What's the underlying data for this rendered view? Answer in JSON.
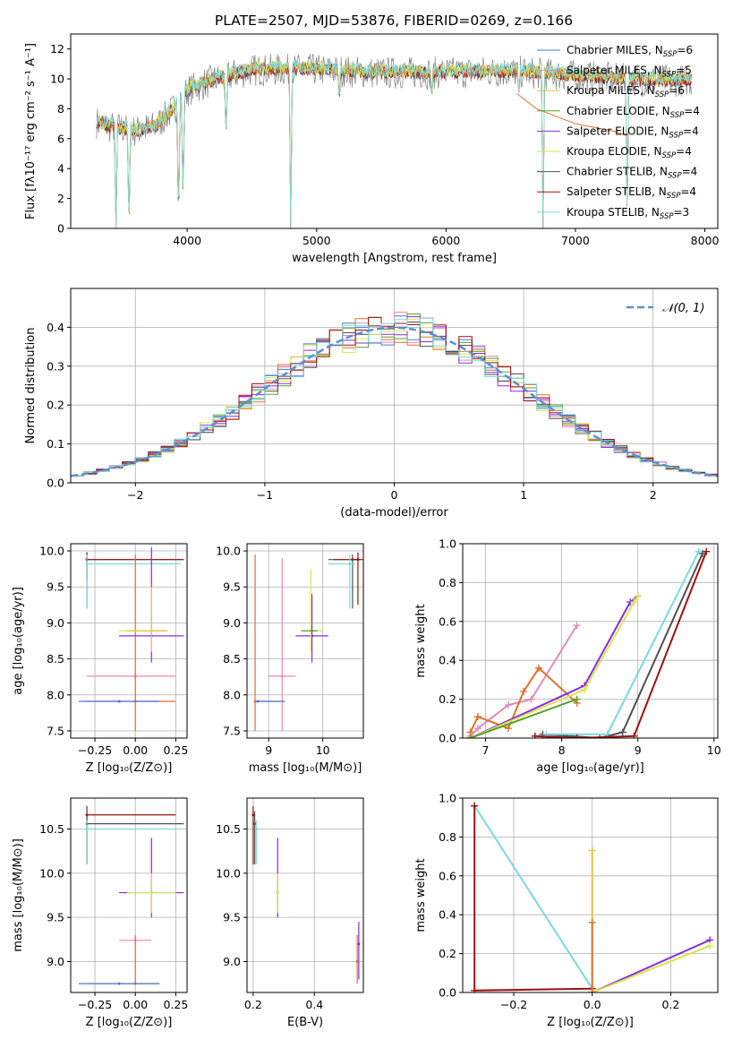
{
  "title": "PLATE=2507, MJD=53876, FIBERID=0269, z=0.166",
  "colors": {
    "Chabrier MILES": "#4a78d6",
    "Salpeter MILES": "#e38ab8",
    "Kroupa MILES": "#e8c040",
    "Chabrier ELODIE": "#5aa02c",
    "Salpeter ELODIE": "#8a2be2",
    "Kroupa ELODIE": "#d4e84a",
    "Chabrier STELIB": "#505050",
    "Salpeter STELIB": "#a01010",
    "Kroupa STELIB": "#7dd8e0",
    "data": "#808080",
    "orange": "#e07030",
    "normal": "#5b8fd6"
  },
  "chart_data": [
    {
      "type": "line",
      "title": "PLATE=2507, MJD=53876, FIBERID=0269, z=0.166",
      "xlabel": "wavelength [Angstrom, rest frame]",
      "ylabel": "Flux [fλ10⁻¹⁷ erg cm⁻² s⁻¹ A⁻¹]",
      "xlim": [
        3100,
        8100
      ],
      "ylim": [
        0,
        13
      ],
      "xticks": [
        "4000",
        "5000",
        "6000",
        "7000",
        "8000"
      ],
      "yticks": [
        "0",
        "2",
        "4",
        "6",
        "8",
        "10",
        "12"
      ],
      "grid": false,
      "legend_position": "top-right",
      "legend": [
        {
          "name": "Chabrier MILES",
          "sub": "SSP",
          "n": "6"
        },
        {
          "name": "Salpeter MILES",
          "sub": "SSP",
          "n": "5"
        },
        {
          "name": "Kroupa MILES",
          "sub": "SSP",
          "n": "6"
        },
        {
          "name": "Chabrier ELODIE",
          "sub": "SSP",
          "n": "4"
        },
        {
          "name": "Salpeter ELODIE",
          "sub": "SSP",
          "n": "4"
        },
        {
          "name": "Kroupa ELODIE",
          "sub": "SSP",
          "n": "4"
        },
        {
          "name": "Chabrier STELIB",
          "sub": "SSP",
          "n": "4"
        },
        {
          "name": "Salpeter STELIB",
          "sub": "SSP",
          "n": "4"
        },
        {
          "name": "Kroupa STELIB",
          "sub": "SSP",
          "n": "3"
        }
      ],
      "continuum": [
        [
          3300,
          7.1
        ],
        [
          3400,
          6.8
        ],
        [
          3600,
          6.5
        ],
        [
          3750,
          6.8
        ],
        [
          3900,
          8.0
        ],
        [
          4000,
          9.2
        ],
        [
          4200,
          9.9
        ],
        [
          4500,
          10.6
        ],
        [
          5000,
          10.6
        ],
        [
          5500,
          10.4
        ],
        [
          6000,
          10.4
        ],
        [
          6500,
          10.5
        ],
        [
          7000,
          10.2
        ],
        [
          7500,
          9.9
        ],
        [
          7900,
          9.9
        ]
      ],
      "dips": [
        [
          3450,
          0
        ],
        [
          3550,
          0
        ],
        [
          3933,
          0
        ],
        [
          3968,
          1.5
        ],
        [
          4300,
          6.0
        ],
        [
          4800,
          0
        ],
        [
          5175,
          8.5
        ],
        [
          5890,
          8.7
        ],
        [
          6563,
          9.0
        ],
        [
          6750,
          0
        ],
        [
          7400,
          0
        ]
      ],
      "tail": [
        [
          6550,
          9.0
        ],
        [
          6700,
          8.0
        ],
        [
          7000,
          7.0
        ],
        [
          7300,
          6.5
        ],
        [
          7400,
          6.2
        ]
      ]
    },
    {
      "type": "line",
      "xlabel": "(data-model)/error",
      "ylabel": "Normed distribution",
      "xlim": [
        -2.5,
        2.5
      ],
      "ylim": [
        0,
        0.5
      ],
      "xticks": [
        "−2",
        "−1",
        "0",
        "1",
        "2"
      ],
      "yticks": [
        "0.0",
        "0.1",
        "0.2",
        "0.3",
        "0.4"
      ],
      "grid": true,
      "legend_position": "top-right",
      "legend_label": "𝒩(0, 1)",
      "bin_width": 0.1,
      "note": "histograms of 9 fits overlaid on a standard normal curve"
    },
    {
      "type": "scatter",
      "xlabel": "Z [log₁₀(Z/Z⊙)]",
      "ylabel": "age  [log₁₀(age/yr)]",
      "xlim": [
        -0.4,
        0.32
      ],
      "ylim": [
        7.4,
        10.1
      ],
      "xticks": [
        "−0.25",
        "0.00",
        "0.25"
      ],
      "yticks": [
        "7.5",
        "8.0",
        "8.5",
        "9.0",
        "9.5",
        "10.0"
      ],
      "grid": true,
      "points": [
        {
          "c": "Chabrier STELIB",
          "x": -0.3,
          "y": 9.88,
          "xe": [
            -0.3,
            0.3
          ],
          "ye": [
            9.2,
            9.98
          ]
        },
        {
          "c": "Salpeter STELIB",
          "x": -0.3,
          "y": 9.88,
          "xe": [
            -0.3,
            0.3
          ],
          "ye": [
            9.6,
            9.98
          ]
        },
        {
          "c": "Kroupa STELIB",
          "x": -0.3,
          "y": 9.82,
          "xe": [
            -0.3,
            0.28
          ],
          "ye": [
            9.2,
            9.95
          ]
        },
        {
          "c": "Salpeter MILES",
          "x": 0.0,
          "y": 8.26,
          "xe": [
            -0.3,
            0.25
          ],
          "ye": [
            8.26,
            8.26
          ]
        },
        {
          "c": "orange",
          "x": 0.0,
          "y": 7.91,
          "xe": [
            -0.3,
            0.25
          ],
          "ye": [
            7.5,
            9.95
          ]
        },
        {
          "c": "Chabrier MILES",
          "x": -0.1,
          "y": 7.91,
          "xe": [
            -0.35,
            0.15
          ],
          "ye": [
            7.91,
            7.91
          ]
        },
        {
          "c": "Salpeter ELODIE",
          "x": 0.1,
          "y": 8.82,
          "xe": [
            -0.1,
            0.3
          ],
          "ye": [
            8.45,
            10.05
          ]
        },
        {
          "c": "Kroupa ELODIE",
          "x": 0.1,
          "y": 8.89,
          "xe": [
            -0.1,
            0.2
          ],
          "ye": [
            8.6,
            9.5
          ]
        },
        {
          "c": "Kroupa MILES",
          "x": 0.0,
          "y": 8.89,
          "xe": [
            -0.05,
            0.2
          ],
          "ye": [
            8.89,
            8.89
          ]
        }
      ]
    },
    {
      "type": "scatter",
      "xlabel": "mass [log₁₀(M/M⊙)]",
      "ylabel": "",
      "xlim": [
        8.6,
        10.75
      ],
      "ylim": [
        7.4,
        10.1
      ],
      "xticks": [
        "9",
        "10"
      ],
      "yticks": [
        "7.5",
        "8.0",
        "8.5",
        "9.0",
        "9.5",
        "10.0"
      ],
      "grid": true,
      "points": [
        {
          "c": "orange",
          "x": 8.75,
          "y": 7.91,
          "xe": [
            8.75,
            9.2
          ],
          "ye": [
            7.5,
            9.95
          ]
        },
        {
          "c": "Salpeter MILES",
          "x": 9.25,
          "y": 8.26,
          "xe": [
            9.0,
            9.5
          ],
          "ye": [
            7.5,
            9.9
          ]
        },
        {
          "c": "Chabrier MILES",
          "x": 8.8,
          "y": 7.91,
          "xe": [
            8.8,
            9.3
          ],
          "ye": [
            7.91,
            7.91
          ]
        },
        {
          "c": "Salpeter ELODIE",
          "x": 9.8,
          "y": 8.82,
          "xe": [
            9.5,
            10.1
          ],
          "ye": [
            8.45,
            9.4
          ]
        },
        {
          "c": "Kroupa ELODIE",
          "x": 9.78,
          "y": 8.89,
          "xe": [
            9.6,
            10.0
          ],
          "ye": [
            8.6,
            9.75
          ]
        },
        {
          "c": "Chabrier ELODIE",
          "x": 9.8,
          "y": 8.89,
          "xe": [
            9.6,
            9.9
          ],
          "ye": [
            8.89,
            8.89
          ]
        },
        {
          "c": "Chabrier STELIB",
          "x": 10.55,
          "y": 9.88,
          "xe": [
            10.1,
            10.7
          ],
          "ye": [
            9.2,
            9.95
          ]
        },
        {
          "c": "Salpeter STELIB",
          "x": 10.65,
          "y": 9.88,
          "xe": [
            10.2,
            10.75
          ],
          "ye": [
            9.25,
            9.98
          ]
        },
        {
          "c": "Kroupa STELIB",
          "x": 10.5,
          "y": 9.82,
          "xe": [
            10.1,
            10.6
          ],
          "ye": [
            9.2,
            9.95
          ]
        }
      ]
    },
    {
      "type": "line",
      "xlabel": "age  [log₁₀(age/yr)]",
      "ylabel": "mass weight",
      "xlim": [
        6.7,
        10.05
      ],
      "ylim": [
        0,
        1.0
      ],
      "xticks": [
        "7",
        "8",
        "9",
        "10"
      ],
      "yticks": [
        "0.0",
        "0.2",
        "0.4",
        "0.6",
        "0.8",
        "1.0"
      ],
      "grid": true,
      "series": [
        {
          "c": "Salpeter MILES",
          "x": [
            6.8,
            6.9,
            7.3,
            7.6,
            8.2
          ],
          "y": [
            0.01,
            0.05,
            0.17,
            0.2,
            0.58
          ]
        },
        {
          "c": "orange",
          "x": [
            6.8,
            6.9,
            7.3,
            7.5,
            7.7,
            8.2
          ],
          "y": [
            0.03,
            0.11,
            0.05,
            0.24,
            0.36,
            0.18
          ]
        },
        {
          "c": "Salpeter ELODIE",
          "x": [
            6.8,
            8.3,
            8.9,
            9.0
          ],
          "y": [
            0.0,
            0.27,
            0.7,
            0.73
          ]
        },
        {
          "c": "Kroupa ELODIE",
          "x": [
            6.8,
            8.3,
            8.95,
            9.0
          ],
          "y": [
            0.0,
            0.25,
            0.7,
            0.73
          ]
        },
        {
          "c": "Chabrier ELODIE",
          "x": [
            6.8,
            8.2
          ],
          "y": [
            0.0,
            0.2
          ]
        },
        {
          "c": "Chabrier STELIB",
          "x": [
            7.75,
            8.5,
            8.8,
            9.85
          ],
          "y": [
            0.02,
            0.0,
            0.03,
            0.95
          ]
        },
        {
          "c": "Kroupa STELIB",
          "x": [
            7.8,
            8.6,
            9.8
          ],
          "y": [
            0.02,
            0.02,
            0.96
          ]
        },
        {
          "c": "Salpeter STELIB",
          "x": [
            7.65,
            8.2,
            8.95,
            9.9
          ],
          "y": [
            0.01,
            0.0,
            0.01,
            0.96
          ]
        }
      ]
    },
    {
      "type": "scatter",
      "xlabel": "Z [log₁₀(Z/Z⊙)]",
      "ylabel": "mass [log₁₀(M/M⊙)]",
      "xlim": [
        -0.4,
        0.32
      ],
      "ylim": [
        8.65,
        10.85
      ],
      "xticks": [
        "−0.25",
        "0.00",
        "0.25"
      ],
      "yticks": [
        "9.0",
        "9.5",
        "10.0",
        "10.5"
      ],
      "grid": true,
      "points": [
        {
          "c": "Salpeter STELIB",
          "x": -0.3,
          "y": 10.66,
          "xe": [
            -0.3,
            0.25
          ],
          "ye": [
            10.1,
            10.76
          ]
        },
        {
          "c": "Chabrier STELIB",
          "x": -0.3,
          "y": 10.56,
          "xe": [
            -0.3,
            0.3
          ],
          "ye": [
            10.1,
            10.7
          ]
        },
        {
          "c": "Kroupa STELIB",
          "x": -0.3,
          "y": 10.5,
          "xe": [
            -0.3,
            0.28
          ],
          "ye": [
            10.1,
            10.6
          ]
        },
        {
          "c": "Salpeter ELODIE",
          "x": 0.1,
          "y": 9.78,
          "xe": [
            -0.1,
            0.3
          ],
          "ye": [
            9.5,
            10.4
          ]
        },
        {
          "c": "Kroupa ELODIE",
          "x": 0.1,
          "y": 9.78,
          "xe": [
            -0.05,
            0.25
          ],
          "ye": [
            9.55,
            10.0
          ]
        },
        {
          "c": "Salpeter MILES",
          "x": 0.0,
          "y": 9.24,
          "xe": [
            -0.1,
            0.1
          ],
          "ye": [
            9.24,
            9.24
          ]
        },
        {
          "c": "orange",
          "x": 0.0,
          "y": 8.75,
          "xe": [
            -0.3,
            0.15
          ],
          "ye": [
            8.75,
            9.3
          ]
        },
        {
          "c": "Chabrier MILES",
          "x": -0.1,
          "y": 8.75,
          "xe": [
            -0.35,
            0.15
          ],
          "ye": [
            8.75,
            8.75
          ]
        }
      ]
    },
    {
      "type": "scatter",
      "xlabel": "E(B-V)",
      "ylabel": "",
      "xlim": [
        0.18,
        0.56
      ],
      "ylim": [
        8.65,
        10.85
      ],
      "xticks": [
        "0.2",
        "0.4"
      ],
      "yticks": [
        "9.0",
        "9.5",
        "10.0",
        "10.5"
      ],
      "grid": true,
      "points": [
        {
          "c": "Salpeter STELIB",
          "x": 0.2,
          "y": 10.66,
          "ye": [
            10.1,
            10.76
          ]
        },
        {
          "c": "Chabrier STELIB",
          "x": 0.205,
          "y": 10.56,
          "ye": [
            10.1,
            10.7
          ]
        },
        {
          "c": "Kroupa STELIB",
          "x": 0.21,
          "y": 10.5,
          "ye": [
            10.1,
            10.6
          ]
        },
        {
          "c": "Salpeter ELODIE",
          "x": 0.28,
          "y": 9.78,
          "ye": [
            9.5,
            10.4
          ]
        },
        {
          "c": "Kroupa ELODIE",
          "x": 0.28,
          "y": 9.78,
          "ye": [
            9.55,
            10.0
          ]
        },
        {
          "c": "Salpeter ELODIE",
          "x": 0.545,
          "y": 9.2,
          "ye": [
            8.8,
            9.45
          ]
        },
        {
          "c": "orange",
          "x": 0.54,
          "y": 9.0,
          "ye": [
            8.75,
            9.3
          ]
        }
      ]
    },
    {
      "type": "line",
      "xlabel": "Z [log₁₀(Z/Z⊙)]",
      "ylabel": "mass weight",
      "xlim": [
        -0.33,
        0.32
      ],
      "ylim": [
        0,
        1.0
      ],
      "xticks": [
        "−0.2",
        "0.0",
        "0.2"
      ],
      "yticks": [
        "0.0",
        "0.2",
        "0.4",
        "0.6",
        "0.8",
        "1.0"
      ],
      "grid": true,
      "series": [
        {
          "c": "Kroupa STELIB",
          "x": [
            -0.3,
            0.0
          ],
          "y": [
            0.96,
            0.02
          ]
        },
        {
          "c": "Salpeter STELIB",
          "x": [
            -0.3,
            -0.3,
            0.0
          ],
          "y": [
            0.96,
            0.01,
            0.02
          ]
        },
        {
          "c": "Salpeter ELODIE",
          "x": [
            0.0,
            0.3
          ],
          "y": [
            0.0,
            0.27
          ]
        },
        {
          "c": "Kroupa ELODIE",
          "x": [
            0.0,
            0.3
          ],
          "y": [
            0.0,
            0.24
          ]
        },
        {
          "c": "Kroupa MILES",
          "x": [
            0.0,
            0.0
          ],
          "y": [
            0.0,
            0.73
          ]
        },
        {
          "c": "orange",
          "x": [
            0.0,
            0.0
          ],
          "y": [
            0.0,
            0.36
          ]
        }
      ]
    }
  ]
}
